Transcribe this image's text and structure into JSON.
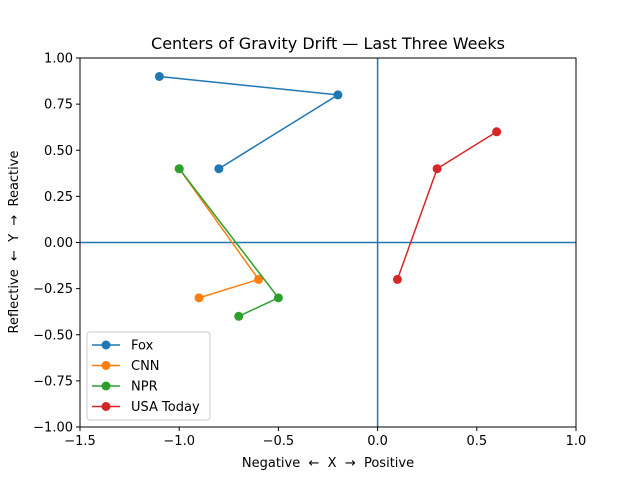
{
  "chart_data": {
    "type": "line",
    "title": "Centers of Gravity Drift — Last Three Weeks",
    "xlabel": "Negative  ←  X  →  Positive",
    "ylabel": "Reflective  ←  Y  →  Reactive",
    "xlim": [
      -1.5,
      1.0
    ],
    "ylim": [
      -1.0,
      1.0
    ],
    "xticks": [
      -1.5,
      -1.0,
      -0.5,
      0.0,
      0.5,
      1.0
    ],
    "xtick_labels": [
      "−1.5",
      "−1.0",
      "−0.5",
      "0.0",
      "0.5",
      "1.0"
    ],
    "yticks": [
      -1.0,
      -0.75,
      -0.5,
      -0.25,
      0.0,
      0.25,
      0.5,
      0.75,
      1.0
    ],
    "ytick_labels": [
      "−1.00",
      "−0.75",
      "−0.50",
      "−0.25",
      "0.00",
      "0.25",
      "0.50",
      "0.75",
      "1.00"
    ],
    "grid": false,
    "reference_lines": {
      "x": 0.0,
      "y": 0.0,
      "color": "#1f77b4"
    },
    "legend_position": "lower-left",
    "series": [
      {
        "name": "Fox",
        "color": "#1f77b4",
        "x": [
          -1.1,
          -0.2,
          -0.8
        ],
        "y": [
          0.9,
          0.8,
          0.4
        ]
      },
      {
        "name": "CNN",
        "color": "#ff7f0e",
        "x": [
          -1.0,
          -0.6,
          -0.9
        ],
        "y": [
          0.4,
          -0.2,
          -0.3
        ]
      },
      {
        "name": "NPR",
        "color": "#2ca02c",
        "x": [
          -1.0,
          -0.5,
          -0.7
        ],
        "y": [
          0.4,
          -0.3,
          -0.4
        ]
      },
      {
        "name": "USA Today",
        "color": "#d62728",
        "x": [
          0.6,
          0.3,
          0.1
        ],
        "y": [
          0.6,
          0.4,
          -0.2
        ]
      }
    ]
  }
}
